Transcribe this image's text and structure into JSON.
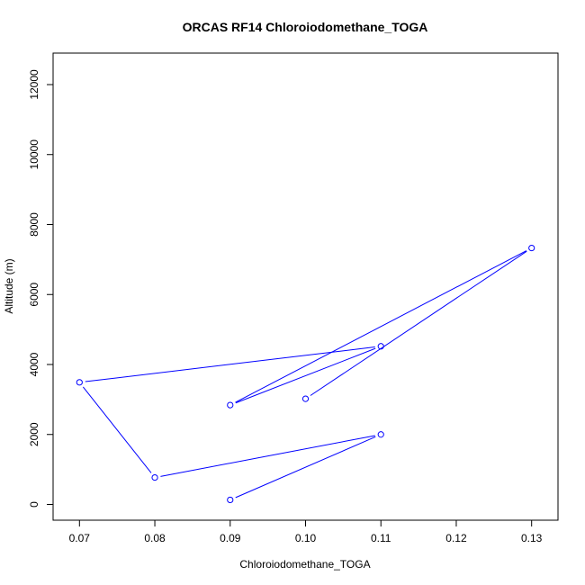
{
  "chart_data": {
    "type": "line",
    "title": "ORCAS RF14 Chloroiodomethane_TOGA",
    "xlabel": "Chloroiodomethane_TOGA",
    "ylabel": "Altitude (m)",
    "xlim": [
      0.0665,
      0.1335
    ],
    "ylim": [
      -450,
      12900
    ],
    "x_ticks": [
      0.07,
      0.08,
      0.09,
      0.1,
      0.11,
      0.12,
      0.13
    ],
    "x_tick_labels": [
      "0.07",
      "0.08",
      "0.09",
      "0.10",
      "0.11",
      "0.12",
      "0.13"
    ],
    "y_ticks": [
      0,
      2000,
      4000,
      6000,
      8000,
      10000,
      12000
    ],
    "y_tick_labels": [
      "0",
      "2000",
      "4000",
      "6000",
      "8000",
      "10000",
      "12000"
    ],
    "grid": false,
    "series": [
      {
        "color": "#0000ff",
        "marker": "open-circle",
        "points": [
          {
            "x": 0.09,
            "y": 130
          },
          {
            "x": 0.11,
            "y": 2000
          },
          {
            "x": 0.08,
            "y": 770
          },
          {
            "x": 0.07,
            "y": 3490
          },
          {
            "x": 0.11,
            "y": 4520
          },
          {
            "x": 0.09,
            "y": 2840
          },
          {
            "x": 0.13,
            "y": 7330
          },
          {
            "x": 0.1,
            "y": 3020
          }
        ]
      }
    ]
  }
}
